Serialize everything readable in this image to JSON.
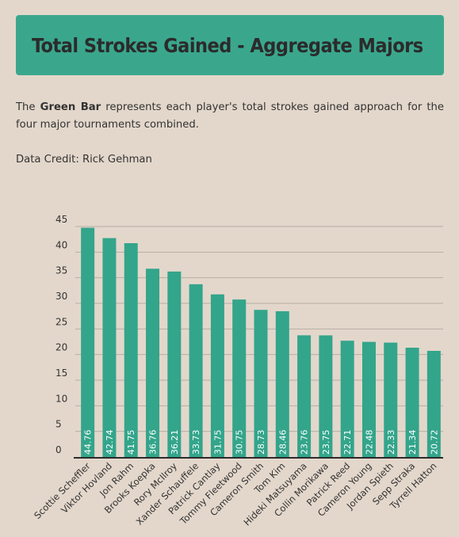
{
  "header": {
    "title": "Total Strokes Gained - Aggregate Majors"
  },
  "description": {
    "lead": "The ",
    "highlight": "Green Bar",
    "rest": " represents each player's total strokes gained approach for the four major tournaments combined."
  },
  "credit": "Data Credit: Rick Gehman",
  "colors": {
    "bar": "#33a58b",
    "banner": "#3aa78d",
    "background": "#e3d7cb",
    "grid": "#b7aea5",
    "axis": "#2b2b2b"
  },
  "chart_data": {
    "type": "bar",
    "title": "Total Strokes Gained - Aggregate Majors",
    "xlabel": "",
    "ylabel": "",
    "ylim": [
      0,
      45
    ],
    "yticks": [
      0,
      5,
      10,
      15,
      20,
      25,
      30,
      35,
      40,
      45
    ],
    "grid": true,
    "categories": [
      "Scottie Scheffler",
      "Viktor Hovland",
      "Jon Rahm",
      "Brooks Koepka",
      "Rory McIlroy",
      "Xander Schauffele",
      "Patrick Cantlay",
      "Tommy Fleetwood",
      "Cameron Smith",
      "Tom Kim",
      "Hideki Matsuyama",
      "Collin Morikawa",
      "Patrick Reed",
      "Cameron Young",
      "Jordan Spieth",
      "Sepp Straka",
      "Tyrrell Hatton"
    ],
    "values": [
      44.76,
      42.74,
      41.75,
      36.76,
      36.21,
      33.73,
      31.75,
      30.75,
      28.73,
      28.46,
      23.76,
      23.75,
      22.71,
      22.48,
      22.33,
      21.34,
      20.72
    ],
    "value_labels": [
      "44.76",
      "42.74",
      "41.75",
      "36.76",
      "36.21",
      "33.73",
      "31.75",
      "30.75",
      "28.73",
      "28.46",
      "23.76",
      "23.75",
      "22.71",
      "22.48",
      "22.33",
      "21.34",
      "20.72"
    ]
  }
}
